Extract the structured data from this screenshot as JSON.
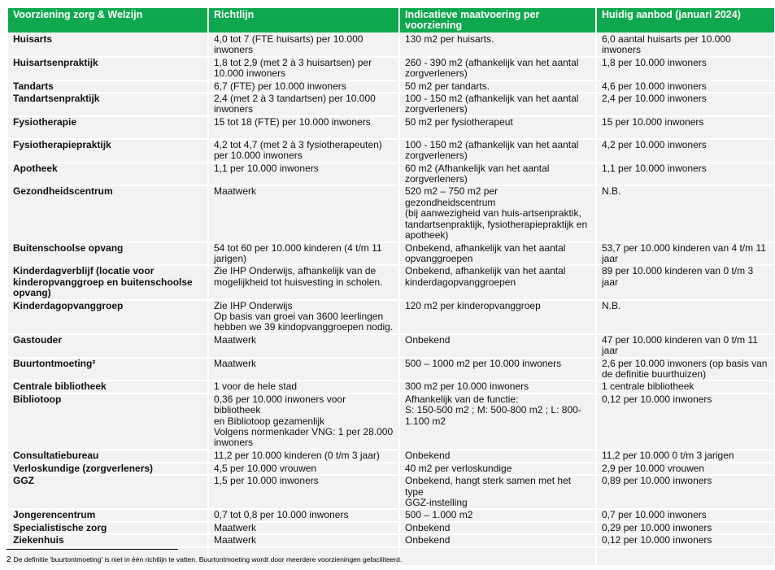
{
  "colors": {
    "header_bg": "#0fa84e",
    "row_bg": "#f2f2f2"
  },
  "headers": [
    "Voorziening zorg & Welzijn",
    "Richtlijn",
    "Indicatieve maatvoering per\nvoorziening",
    "Huidig aanbod (januari 2024)"
  ],
  "rows": [
    [
      "Huisarts",
      "4,0 tot 7 (FTE huisarts) per 10.000\ninwoners",
      "130 m2 per huisarts.",
      "6,0 aantal huisarts per 10.000\ninwoners"
    ],
    [
      "Huisartsenpraktijk",
      "1,8 tot 2,9 (met 2 à 3 huisartsen) per\n10.000 inwoners",
      "260 - 390 m2 (afhankelijk van het aantal\nzorgverleners)",
      "1,8 per 10.000 inwoners"
    ],
    [
      "Tandarts",
      "6,7 (FTE) per 10.000 inwoners",
      "50 m2 per tandarts.",
      "4,6 per 10.000 inwoners"
    ],
    [
      "Tandartsenpraktijk",
      "2,4 (met 2 à 3 tandartsen) per 10.000\ninwoners",
      "100 - 150 m2 (afhankelijk van het aantal\nzorgverleners)",
      "2,4 per 10.000 inwoners"
    ],
    [
      "Fysiotherapie",
      "15 tot 18 (FTE) per 10.000 inwoners",
      "50 m2 per fysiotherapeut",
      "15 per 10.000 inwoners"
    ],
    [
      "Fysiotherapiepraktijk",
      "4,2 tot 4,7 (met 2 à 3 fysiotherapeuten)\nper 10.000 inwoners",
      "100 - 150 m2 (afhankelijk van het aantal\nzorgverleners)",
      "4,2 per 10.000 inwoners"
    ],
    [
      "Apotheek",
      "1,1 per 10.000 inwoners",
      "60 m2 (Afhankelijk van het aantal\nzorgverleners)",
      "1,1 per 10.000 inwoners"
    ],
    [
      "Gezondheidscentrum",
      "Maatwerk",
      "520 m2 – 750 m2 per gezondheidscentrum\n(bij aanwezigheid van huis-artsenpraktik,\ntandartsenpraktijk, fysiotherapiepraktijk en\napotheek)",
      "N.B."
    ],
    [
      "Buitenschoolse opvang",
      "54 tot 60 per 10.000 kinderen (4 t/m 11\njarigen)",
      "Onbekend, afhankelijk van het aantal\nopvanggroepen",
      "53,7 per 10.000 kinderen van 4 t/m 11\njaar"
    ],
    [
      "Kinderdagverblijf (locatie voor\nkinderopvanggroep en buitenschoolse\nopvang)",
      "Zie IHP Onderwijs, afhankelijk van de\nmogelijkheid tot huisvesting in scholen.",
      "Onbekend, afhankelijk van het aantal\nkinderdagopvanggroepen",
      "89 per 10.000 kinderen van 0 t/m 3\njaar"
    ],
    [
      "Kinderdagopvanggroep",
      "Zie IHP Onderwijs\nOp basis van groei van 3600 leerlingen\nhebben we 39 kindopvanggroepen nodig.",
      "120 m2 per kinderopvanggroep",
      "N.B."
    ],
    [
      "Gastouder",
      "Maatwerk",
      "Onbekend",
      "47 per 10.000 kinderen van 0 t/m 11\njaar"
    ],
    [
      "Buurtontmoeting²",
      "Maatwerk",
      "500 – 1000 m2 per 10.000 inwoners",
      "2,6 per 10.000 inwoners (op basis van\nde definitie buurthuizen)"
    ],
    [
      "Centrale bibliotheek",
      "1 voor de hele stad",
      "300 m2 per 10.000 inwoners",
      "1 centrale bibliotheek"
    ],
    [
      "Bibliotoop",
      "0,36 per 10.000 inwoners voor bibliotheek\nen Bibliotoop gezamenlijk\nVolgens normenkader VNG: 1 per 28.000\ninwoners",
      "Afhankelijk van de functie:\nS: 150-500 m2 ; M: 500-800 m2 ; L: 800-\n1.100 m2",
      "0,12 per 10.000 inwoners"
    ],
    [
      "Consultatiebureau",
      "11,2 per 10.000 kinderen (0 t/m 3 jaar)",
      "Onbekend",
      "11,2 per 10.000 0 t/m 3 jarigen"
    ],
    [
      "Verloskundige (zorgverleners)",
      "4,5 per 10.000 vrouwen",
      "40 m2 per verloskundige",
      "2,9 per 10.000 vrouwen"
    ],
    [
      "GGZ",
      "1,5 per 10.000 inwoners",
      "Onbekend, hangt sterk samen met het type\nGGZ-instelling",
      "0,89 per 10.000 inwoners"
    ],
    [
      "Jongerencentrum",
      "0,7 tot 0,8 per 10.000 inwoners",
      "500 – 1.000 m2",
      "0,7 per 10.000 inwoners"
    ],
    [
      "Specialistische zorg",
      "Maatwerk",
      "Onbekend",
      "0,29 per 10.000 inwoners"
    ],
    [
      "Ziekenhuis",
      "Maatwerk",
      "Onbekend",
      "0,12 per 10.000 inwoners"
    ],
    [
      "",
      "",
      "",
      ""
    ]
  ],
  "footnote": {
    "number": "2",
    "text": "De definitie 'buurtontmoeting' is niet in één richtlijn te vatten. Buurtontmoeting wordt door meerdere voorzieningen gefaciliteerd."
  }
}
